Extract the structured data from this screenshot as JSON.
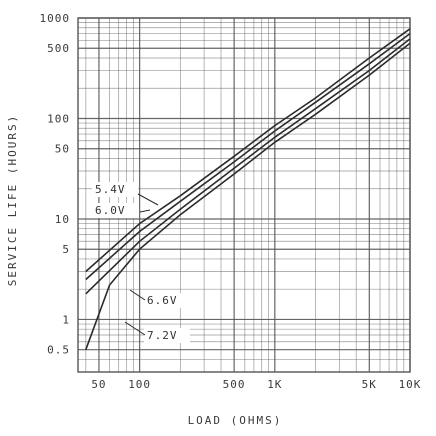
{
  "chart_data": {
    "type": "line",
    "xlabel": "LOAD (OHMS)",
    "ylabel": "SERVICE LIFE (HOURS)",
    "x_scale": "log",
    "y_scale": "log",
    "xlim": [
      35,
      10000
    ],
    "ylim": [
      0.3,
      1000
    ],
    "grid": true,
    "x_ticks": [
      {
        "value": 50,
        "label": "50"
      },
      {
        "value": 100,
        "label": "100"
      },
      {
        "value": 500,
        "label": "500"
      },
      {
        "value": 1000,
        "label": "1K"
      },
      {
        "value": 5000,
        "label": "5K"
      },
      {
        "value": 10000,
        "label": "10K"
      }
    ],
    "y_ticks": [
      {
        "value": 1000,
        "label": "1000"
      },
      {
        "value": 500,
        "label": "500"
      },
      {
        "value": 100,
        "label": "100"
      },
      {
        "value": 50,
        "label": "50"
      },
      {
        "value": 10,
        "label": "10"
      },
      {
        "value": 5,
        "label": "5"
      },
      {
        "value": 1,
        "label": "1"
      },
      {
        "value": 0.5,
        "label": "0.5"
      }
    ],
    "series": [
      {
        "name": "5.4V",
        "x": [
          40,
          100,
          200,
          500,
          1000,
          2000,
          5000,
          10000
        ],
        "y": [
          3,
          9,
          17,
          42,
          85,
          160,
          400,
          780
        ]
      },
      {
        "name": "6.0V",
        "x": [
          40,
          100,
          200,
          500,
          1000,
          2000,
          5000,
          10000
        ],
        "y": [
          2.5,
          7.5,
          15,
          37,
          75,
          145,
          350,
          700
        ]
      },
      {
        "name": "6.6V",
        "x": [
          40,
          100,
          200,
          500,
          1000,
          2000,
          5000,
          10000
        ],
        "y": [
          1.8,
          6,
          12.5,
          32,
          65,
          125,
          300,
          620
        ]
      },
      {
        "name": "7.2V",
        "x": [
          40,
          60,
          100,
          200,
          500,
          1000,
          2000,
          5000,
          10000
        ],
        "y": [
          0.5,
          2.2,
          5,
          11,
          28,
          58,
          110,
          270,
          560
        ]
      }
    ],
    "line_color": "#2b2b2b",
    "grid_color": "#555555"
  }
}
